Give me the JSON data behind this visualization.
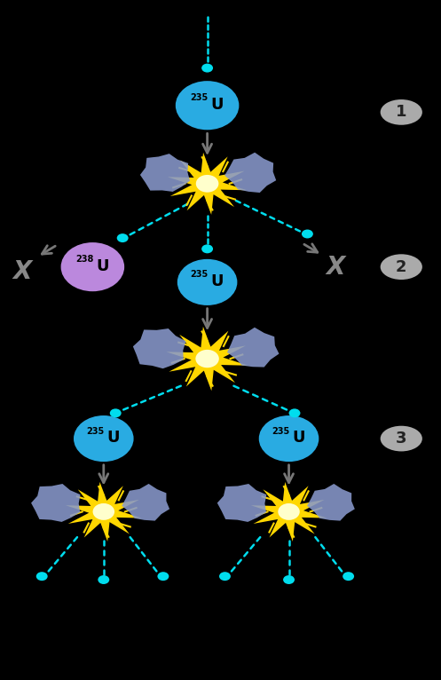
{
  "bg_color": "#000000",
  "u235_color": "#29ABE2",
  "u238_color": "#BB88DD",
  "neutron_color": "#00DDEE",
  "explosion_color": "#FFD700",
  "explosion_inner": "#FFEE88",
  "fragment_color": "#8899CC",
  "arrow_color": "#777777",
  "x_color": "#888888",
  "stage_bg": "#AAAAAA",
  "stage_text": "#333333",
  "figsize": [
    4.97,
    7.66
  ],
  "dpi": 100,
  "xlim": [
    0,
    10
  ],
  "ylim": [
    0,
    20
  ]
}
